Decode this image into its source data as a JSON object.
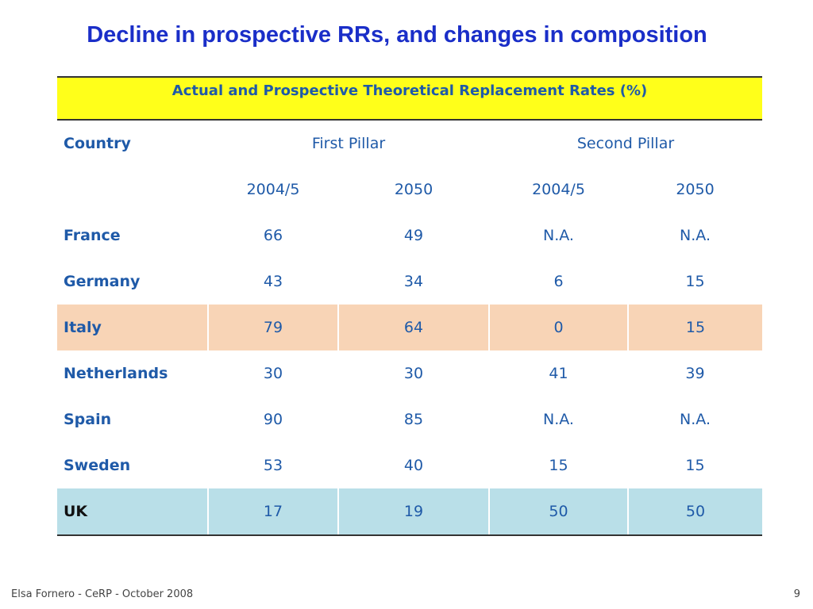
{
  "slide": {
    "title": "Decline in prospective RRs, and changes in composition",
    "footer_left": "Elsa Fornero - CeRP - October 2008",
    "page_number": "9"
  },
  "table": {
    "caption": "Actual and Prospective Theoretical Replacement Rates (%)",
    "header_country": "Country",
    "header_first_pillar": "First Pillar",
    "header_second_pillar": "Second Pillar",
    "subheaders": [
      "2004/5",
      "2050",
      "2004/5",
      "2050"
    ],
    "rows": [
      {
        "country": "France",
        "values": [
          "66",
          "49",
          "N.A.",
          "N.A."
        ]
      },
      {
        "country": "Germany",
        "values": [
          "43",
          "34",
          "6",
          "15"
        ]
      },
      {
        "country": "Italy",
        "values": [
          "79",
          "64",
          "0",
          "15"
        ]
      },
      {
        "country": "Netherlands",
        "values": [
          "30",
          "30",
          "41",
          "39"
        ]
      },
      {
        "country": "Spain",
        "values": [
          "90",
          "85",
          "N.A.",
          "N.A."
        ]
      },
      {
        "country": "Sweden",
        "values": [
          "53",
          "40",
          "15",
          "15"
        ]
      },
      {
        "country": "UK",
        "values": [
          "17",
          "19",
          "50",
          "50"
        ]
      }
    ],
    "highlight_colors": {
      "italy": "#f8d4b6",
      "uk": "#b9dfe8",
      "caption": "#ffff1a"
    }
  }
}
